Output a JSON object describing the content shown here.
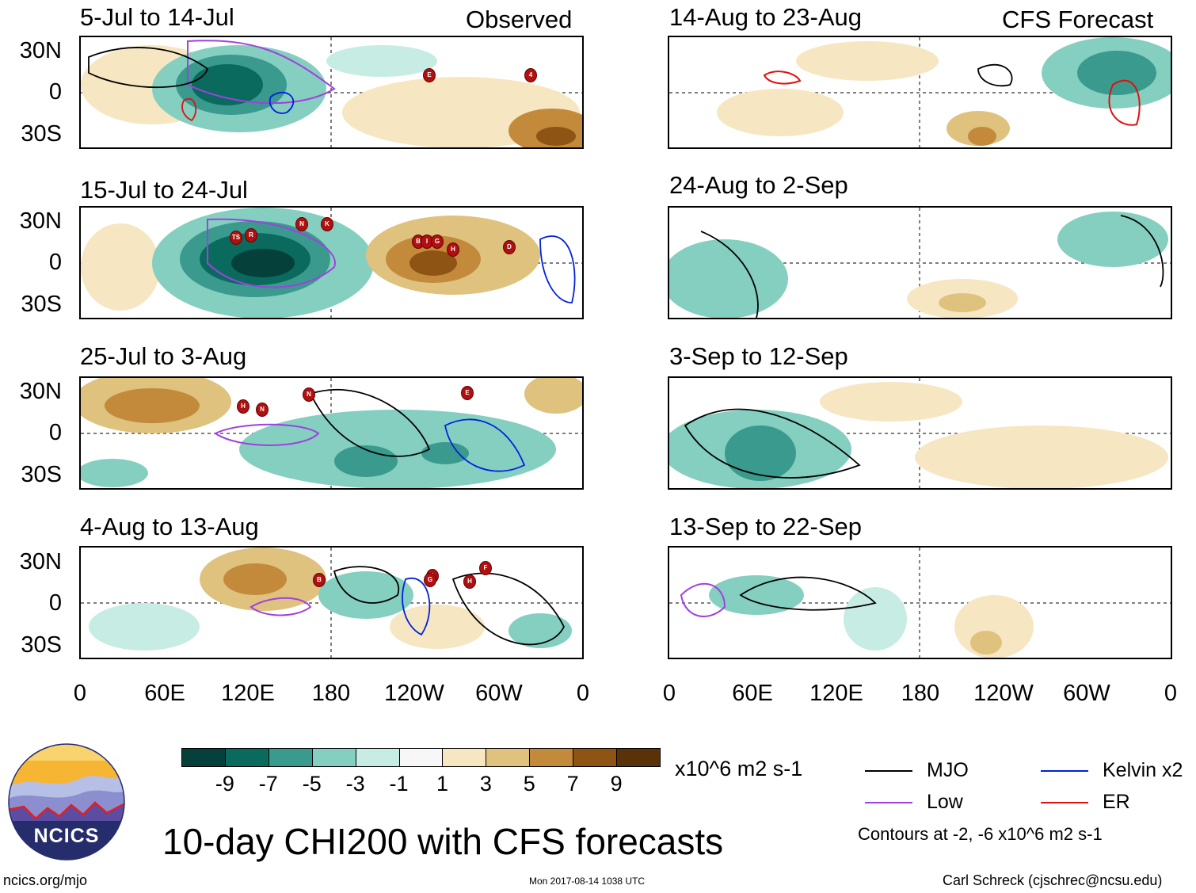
{
  "headers": {
    "left": "Observed",
    "right": "CFS Forecast"
  },
  "observed_panels": [
    {
      "title": "5-Jul to 14-Jul"
    },
    {
      "title": "15-Jul to 24-Jul"
    },
    {
      "title": "25-Jul to 3-Aug"
    },
    {
      "title": "4-Aug to 13-Aug"
    }
  ],
  "forecast_panels": [
    {
      "title": "14-Aug to 23-Aug"
    },
    {
      "title": "24-Aug to 2-Sep"
    },
    {
      "title": "3-Sep to 12-Sep"
    },
    {
      "title": "13-Sep to 22-Sep"
    }
  ],
  "lat_labels": [
    "30N",
    "0",
    "30S"
  ],
  "lon_labels": [
    "0",
    "60E",
    "120E",
    "180",
    "120W",
    "60W",
    "0"
  ],
  "colorbar": {
    "colors": [
      "#05403a",
      "#0b6a5e",
      "#3a9a8e",
      "#85cfc0",
      "#c6ece4",
      "#f7f7f7",
      "#f6e6c2",
      "#dfc27d",
      "#c48a3c",
      "#8e5413",
      "#5a3208"
    ],
    "labels": [
      "-9",
      "-7",
      "-5",
      "-3",
      "-1",
      "1",
      "3",
      "5",
      "7",
      "9"
    ],
    "units": "x10^6 m2 s-1"
  },
  "legend": {
    "items": [
      {
        "label": "MJO",
        "color": "#000000"
      },
      {
        "label": "Kelvin x2",
        "color": "#0022dd"
      },
      {
        "label": "Low",
        "color": "#a040e0"
      },
      {
        "label": "ER",
        "color": "#e01010"
      }
    ],
    "note": "Contours at -2, -6 x10^6 m2 s-1"
  },
  "title": "10-day CHI200 with CFS forecasts",
  "logo_text": "NCICS",
  "footer": {
    "left": "ncics.org/mjo",
    "center": "Mon 2017-08-14 1038 UTC",
    "right": "Carl Schreck (cjschrec@ncsu.edu)"
  },
  "storm_markers": [
    [
      "E",
      "4"
    ],
    [
      "TS",
      "R",
      "N",
      "K",
      "B",
      "I",
      "G",
      "H",
      "D"
    ],
    [
      "H",
      "N",
      "N",
      "E"
    ],
    [
      "B",
      "I",
      "H",
      "F",
      "G"
    ]
  ]
}
